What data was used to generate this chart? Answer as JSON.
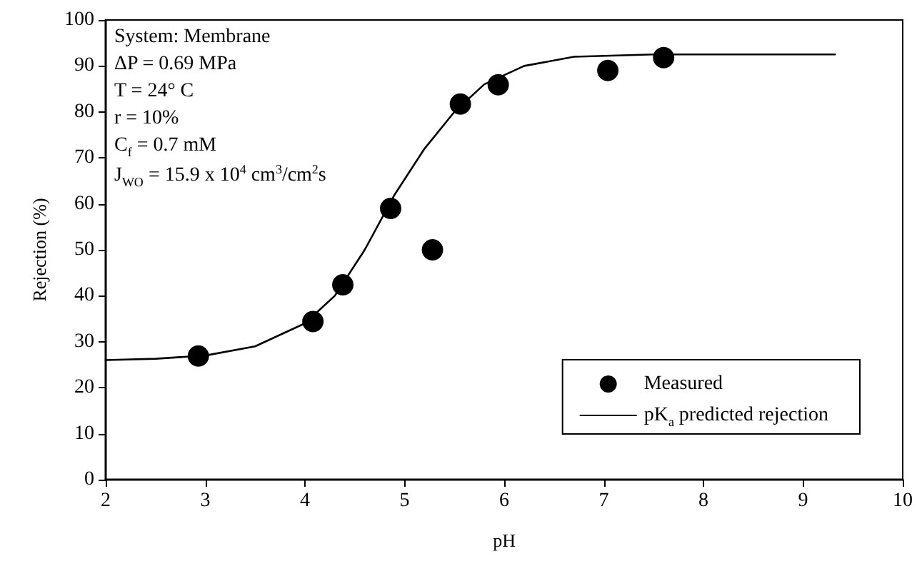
{
  "chart_data": {
    "type": "scatter",
    "xlabel": "pH",
    "ylabel": "Rejection (%)",
    "xlim": [
      2,
      10
    ],
    "xticks": [
      2,
      3,
      4,
      5,
      6,
      7,
      8,
      9,
      10
    ],
    "ylim": [
      0,
      100
    ],
    "yticks": [
      0,
      10,
      20,
      30,
      40,
      50,
      60,
      70,
      80,
      90,
      100
    ],
    "grid": false,
    "legend": "bottom right",
    "marker": "circle",
    "annotations": [
      "System: Membrane",
      "ΔP = 0.69 MPa",
      "T = 24° C",
      "r = 10%",
      "C$_{f}$ = 0.7 mM",
      "J$_{WO}$ = 15.9 x 10$^{4}$ cm$^{3}$/cm$^{2}$s"
    ],
    "series": [
      {
        "name": "Measured",
        "color": "#000000",
        "x": [
          2.93,
          4.08,
          4.38,
          4.86,
          5.28,
          5.56,
          5.94,
          7.04,
          7.6
        ],
        "values": [
          26.9,
          34.4,
          42.4,
          59,
          50,
          81.7,
          85.9,
          89,
          91.8
        ]
      },
      {
        "name": "pK$_{a}$ predicted rejection",
        "type": "line",
        "marker": "none",
        "line_style": "solid",
        "color": "#000000",
        "x": [
          2,
          2.5,
          3,
          3.5,
          4,
          4.3,
          4.6,
          4.9,
          5.2,
          5.5,
          5.8,
          6.2,
          6.7,
          7.5,
          9.32
        ],
        "values": [
          26,
          26.3,
          27,
          29,
          34,
          40,
          50,
          62,
          72,
          80,
          86,
          90,
          92,
          92.5,
          92.5
        ]
      }
    ]
  }
}
